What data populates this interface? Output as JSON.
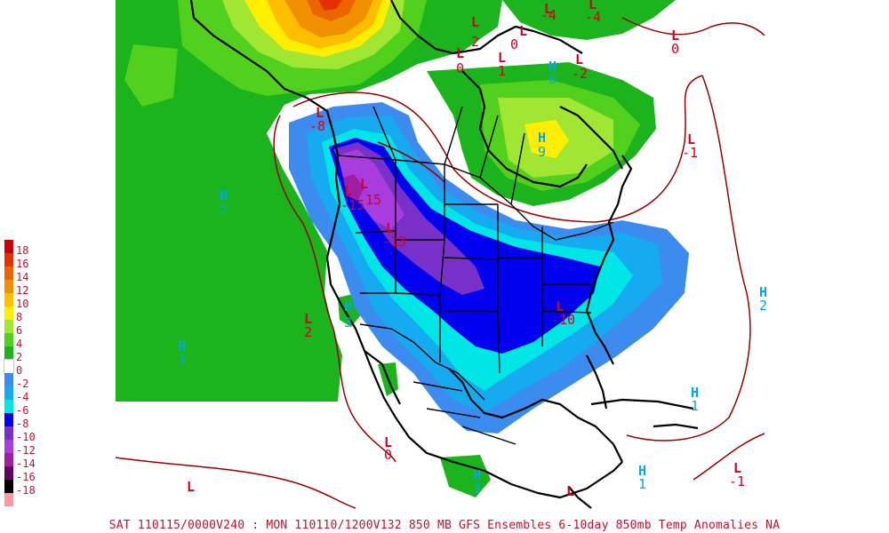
{
  "caption": "SAT 110115/0000V240 : MON 110110/1200V132  850 MB GFS Ensembles 6-10day 850mb Temp Anomalies NA",
  "colors": {
    "low_label": "#d4001c",
    "high_label": "#00a8e8",
    "contour": "#9b0000",
    "coast": "#000000"
  },
  "legend": [
    {
      "label": "18",
      "color": "#cc0000"
    },
    {
      "label": "16",
      "color": "#e23200"
    },
    {
      "label": "14",
      "color": "#ec6400"
    },
    {
      "label": "12",
      "color": "#f09000"
    },
    {
      "label": "10",
      "color": "#ffbe00"
    },
    {
      "label": "8",
      "color": "#ffee00"
    },
    {
      "label": "6",
      "color": "#a0e632"
    },
    {
      "label": "4",
      "color": "#52d01e"
    },
    {
      "label": "2",
      "color": "#1cb41c"
    },
    {
      "label": "0",
      "color": "#ffffff"
    },
    {
      "label": "-2",
      "color": "#3c8cf0"
    },
    {
      "label": "-4",
      "color": "#16aaf0"
    },
    {
      "label": "-6",
      "color": "#00e6e6"
    },
    {
      "label": "-8",
      "color": "#0000ee"
    },
    {
      "label": "-10",
      "color": "#7830c8"
    },
    {
      "label": "-12",
      "color": "#a83cdc"
    },
    {
      "label": "-14",
      "color": "#a01ea0"
    },
    {
      "label": "-16",
      "color": "#640064"
    },
    {
      "label": "-18",
      "color": "#000000"
    },
    {
      "label": "",
      "color": "#ff96a0"
    }
  ],
  "centers": [
    {
      "type": "L",
      "value": "-4"
    },
    {
      "type": "L",
      "value": "-4"
    },
    {
      "type": "L",
      "value": "0"
    },
    {
      "type": "L",
      "value": "2"
    },
    {
      "type": "L",
      "value": "0"
    },
    {
      "type": "L",
      "value": "1"
    },
    {
      "type": "L",
      "value": "0"
    },
    {
      "type": "L",
      "value": "-2"
    },
    {
      "type": "L",
      "value": "-8"
    },
    {
      "type": "L",
      "value": "-1"
    },
    {
      "type": "L",
      "value": "-15"
    },
    {
      "type": "L",
      "value": "-15"
    },
    {
      "type": "L",
      "value": "-13"
    },
    {
      "type": "L",
      "value": "-10"
    },
    {
      "type": "L",
      "value": "2"
    },
    {
      "type": "L",
      "value": "0"
    },
    {
      "type": "L",
      "value": ""
    },
    {
      "type": "L",
      "value": "-1"
    },
    {
      "type": "L",
      "value": ""
    },
    {
      "type": "H",
      "value": "6"
    },
    {
      "type": "H",
      "value": "9"
    },
    {
      "type": "H",
      "value": "5"
    },
    {
      "type": "H",
      "value": "3"
    },
    {
      "type": "H",
      "value": "3"
    },
    {
      "type": "H",
      "value": "2"
    },
    {
      "type": "H",
      "value": "1"
    },
    {
      "type": "H",
      "value": "1"
    },
    {
      "type": "H",
      "value": "3"
    }
  ]
}
